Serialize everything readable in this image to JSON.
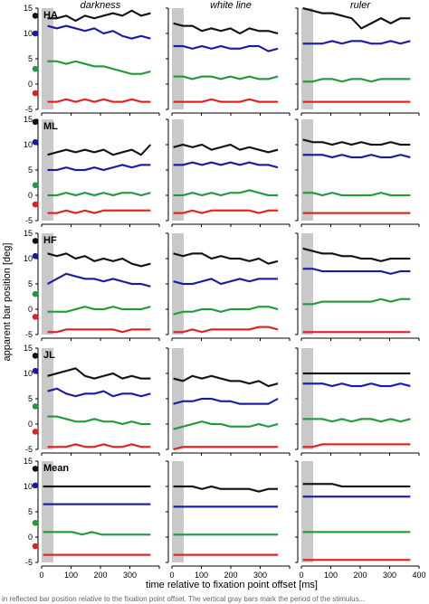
{
  "chart_data": {
    "type": "line",
    "columns": [
      "darkness",
      "white line",
      "ruler"
    ],
    "rows": [
      "HA",
      "ML",
      "HF",
      "JL",
      "Mean"
    ],
    "xlabel": "time relative to fixation point offset [ms]",
    "ylabel": "apparent bar position [deg]",
    "xlim": [
      0,
      400
    ],
    "ylim": [
      -5,
      15
    ],
    "xticks": [
      0,
      100,
      200,
      300,
      400
    ],
    "yticks": [
      15,
      10,
      5,
      0,
      -5
    ],
    "xtick_labels_by_column": [
      [
        "0",
        "100",
        "200",
        "300"
      ],
      [
        "0",
        "100",
        "200",
        "300"
      ],
      [
        "0",
        "100",
        "200",
        "300",
        "400"
      ]
    ],
    "ytick_labels": [
      "15",
      "10",
      "5",
      "0",
      "-5"
    ],
    "shaded_interval": [
      0,
      40
    ],
    "series_colors": [
      "#111111",
      "#1a1aa0",
      "#1e9a3a",
      "#e02020"
    ],
    "stimulus_positions": [
      [
        13.5,
        10,
        3,
        -1.8
      ],
      [
        14.5,
        10.5,
        2,
        -1.8
      ],
      [
        13.5,
        10.5,
        3,
        -1.5
      ],
      [
        13.5,
        10.5,
        3.5,
        -1.5
      ],
      [
        13.5,
        10.2,
        2.8,
        -1.8
      ]
    ],
    "panels": [
      [
        {
          "x0": 20,
          "x1": 370,
          "series": [
            [
              13,
              13,
              13.5,
              12.5,
              13.5,
              13,
              13.5,
              14,
              13.5,
              14.5,
              13.5,
              14
            ],
            [
              11.5,
              11,
              11.5,
              11,
              10.5,
              11,
              10,
              10.5,
              9.5,
              9,
              9.5,
              9
            ],
            [
              4.5,
              4.5,
              4,
              4.5,
              4,
              3.5,
              3.5,
              3,
              2.5,
              2,
              2,
              2.5
            ],
            [
              -3.5,
              -3.5,
              -3,
              -3.5,
              -3,
              -3.5,
              -3,
              -3.5,
              -3.5,
              -3,
              -3.5,
              -3.5
            ]
          ]
        },
        {
          "x0": 5,
          "x1": 360,
          "series": [
            [
              12,
              11.5,
              11.5,
              10.5,
              11,
              10.5,
              11,
              10,
              11,
              10.5,
              10.5,
              10
            ],
            [
              7.5,
              7.5,
              7,
              7.5,
              7,
              7.5,
              7,
              7,
              7.5,
              7.5,
              6.5,
              7
            ],
            [
              1.5,
              1.5,
              1,
              1.5,
              1.5,
              1,
              1.5,
              1,
              1.5,
              1,
              1,
              1.5
            ],
            [
              -3.5,
              -3.5,
              -3.5,
              -3.5,
              -3,
              -3.5,
              -3.5,
              -3.5,
              -3,
              -3.5,
              -3.5,
              -3.5
            ]
          ]
        },
        {
          "x0": 5,
          "x1": 370,
          "series": [
            [
              15,
              14.5,
              14,
              14,
              13.5,
              13,
              11,
              12,
              13,
              12,
              13,
              13
            ],
            [
              8,
              8,
              8,
              8.5,
              8,
              8.5,
              8.5,
              8,
              8,
              8.5,
              8,
              8.5
            ],
            [
              0.5,
              0.5,
              1,
              1,
              0.5,
              1,
              1,
              0.5,
              1,
              1,
              1,
              1
            ],
            [
              -3.5,
              -3.5,
              -3.5,
              -3.5,
              -3.5,
              -3.5,
              -3.5,
              -3.5,
              -3.5,
              -3.5,
              -3.5,
              -3.5
            ]
          ]
        }
      ],
      [
        {
          "x0": 20,
          "x1": 370,
          "series": [
            [
              8,
              8.5,
              9,
              8.5,
              9,
              8.5,
              9,
              8,
              8.5,
              9,
              8,
              10
            ],
            [
              5,
              5,
              5.5,
              5,
              5,
              5.5,
              5,
              5.5,
              6,
              5.5,
              6,
              6
            ],
            [
              0,
              0,
              0.5,
              0,
              0.5,
              0,
              0.5,
              0,
              0.5,
              0.5,
              0,
              0.5
            ],
            [
              -3.5,
              -3.5,
              -3,
              -3.5,
              -3,
              -3.5,
              -3,
              -3,
              -3,
              -3,
              -3,
              -3
            ]
          ]
        },
        {
          "x0": 5,
          "x1": 360,
          "series": [
            [
              9.5,
              10,
              9.5,
              10,
              9,
              9.5,
              10,
              9,
              9.5,
              9,
              8.5,
              9
            ],
            [
              6,
              6,
              6.5,
              6,
              6.5,
              6,
              6.5,
              6,
              6.5,
              6,
              6,
              5.5
            ],
            [
              0,
              0,
              0.5,
              0,
              0.5,
              0,
              0.5,
              0.5,
              1,
              0.5,
              0,
              0
            ],
            [
              -3.5,
              -3.5,
              -3,
              -3.5,
              -3,
              -3,
              -3,
              -3,
              -3,
              -3.5,
              -3,
              -3
            ]
          ]
        },
        {
          "x0": 5,
          "x1": 370,
          "series": [
            [
              11,
              10.5,
              10.5,
              10,
              10.5,
              10,
              10.5,
              10,
              10,
              10.5,
              10,
              10
            ],
            [
              8,
              8,
              8,
              7.5,
              8,
              7.5,
              7.5,
              8,
              7.5,
              7.5,
              8,
              7.5
            ],
            [
              0.5,
              0.5,
              0,
              0.5,
              0,
              0,
              0,
              0,
              0.5,
              0,
              0,
              0
            ],
            [
              -3.5,
              -3.5,
              -3.5,
              -3.5,
              -3.5,
              -3.5,
              -3.5,
              -3.5,
              -3.5,
              -3.5,
              -3.5,
              -3.5
            ]
          ]
        }
      ],
      [
        {
          "x0": 20,
          "x1": 370,
          "series": [
            [
              11,
              10.5,
              11,
              10,
              10.5,
              9.5,
              10,
              9.5,
              10,
              9,
              8.5,
              9
            ],
            [
              5,
              6,
              7,
              6.5,
              6,
              6,
              5.5,
              6,
              5.5,
              5,
              5,
              4.5
            ],
            [
              -0.5,
              -0.5,
              -0.5,
              0,
              0.5,
              0,
              0,
              0.5,
              0,
              0,
              0,
              0.5
            ],
            [
              -4.5,
              -4.5,
              -4,
              -4,
              -4,
              -4,
              -4,
              -4,
              -4.5,
              -4,
              -4,
              -4
            ]
          ]
        },
        {
          "x0": 5,
          "x1": 360,
          "series": [
            [
              11,
              10.5,
              11,
              11,
              10,
              10.5,
              10,
              10,
              9.5,
              10,
              9,
              9.5
            ],
            [
              5.5,
              5,
              5,
              5.5,
              6,
              5,
              5.5,
              6,
              5.5,
              6,
              6,
              6
            ],
            [
              -1,
              -0.5,
              -0.5,
              0,
              0,
              -0.5,
              0,
              0,
              0,
              0.5,
              0.5,
              0
            ],
            [
              -4.5,
              -4.5,
              -4,
              -4.5,
              -4,
              -4,
              -4,
              -4,
              -4,
              -3.5,
              -3.5,
              -4
            ]
          ]
        },
        {
          "x0": 5,
          "x1": 370,
          "series": [
            [
              12,
              11.5,
              11,
              11,
              10.5,
              10.5,
              10,
              10,
              9.5,
              10,
              10,
              10
            ],
            [
              8,
              8,
              7.5,
              7.5,
              7.5,
              7.5,
              7.5,
              7.5,
              7.5,
              7,
              7.5,
              7.5
            ],
            [
              1,
              1,
              1.5,
              1.5,
              1.5,
              1.5,
              1.5,
              1.5,
              2,
              1.5,
              2,
              2
            ],
            [
              -4.5,
              -4.5,
              -4.5,
              -4.5,
              -4.5,
              -4.5,
              -4.5,
              -4.5,
              -4.5,
              -4.5,
              -4.5,
              -4.5
            ]
          ]
        }
      ],
      [
        {
          "x0": 20,
          "x1": 370,
          "series": [
            [
              9.5,
              10,
              10.5,
              11,
              9.5,
              9,
              9.5,
              10,
              9,
              9.5,
              9,
              9
            ],
            [
              6.5,
              7,
              6,
              5.5,
              6,
              6,
              6.5,
              5.5,
              6,
              6,
              5.5,
              6
            ],
            [
              1.5,
              1.5,
              1,
              0.5,
              0.5,
              1,
              0.5,
              0.5,
              0,
              0.5,
              0,
              0
            ],
            [
              -4.5,
              -4.5,
              -4.5,
              -4,
              -4.5,
              -4.5,
              -4,
              -4.5,
              -4.5,
              -4,
              -4.5,
              -4.5
            ]
          ]
        },
        {
          "x0": 5,
          "x1": 360,
          "series": [
            [
              9,
              8.5,
              9.5,
              9,
              9.5,
              9,
              8.5,
              8.5,
              8,
              8.5,
              7.5,
              8
            ],
            [
              4,
              4.5,
              4.5,
              5,
              5,
              4.5,
              4.5,
              4,
              4,
              4,
              4,
              5
            ],
            [
              -1,
              -0.5,
              0,
              0.5,
              0,
              0,
              -0.5,
              -0.5,
              -0.5,
              0,
              -0.5,
              0
            ],
            [
              -5,
              -4.5,
              -4.5,
              -4.5,
              -4.5,
              -4.5,
              -4.5,
              -4.5,
              -4.5,
              -4.5,
              -4.5,
              -4.5
            ]
          ]
        },
        {
          "x0": 5,
          "x1": 370,
          "series": [
            [
              10,
              10,
              10,
              10,
              10,
              10,
              10,
              10,
              10,
              10,
              10,
              10
            ],
            [
              8,
              8,
              8,
              7.5,
              8,
              7.5,
              7.5,
              8,
              7.5,
              7.5,
              8,
              7.5
            ],
            [
              1,
              1,
              1,
              0.5,
              1,
              0.5,
              1,
              1,
              0.5,
              1,
              0.5,
              1
            ],
            [
              -4.5,
              -4.5,
              -4,
              -4,
              -4,
              -4,
              -4,
              -4,
              -4,
              -4,
              -4,
              -4
            ]
          ]
        }
      ],
      [
        {
          "x0": 5,
          "x1": 370,
          "series": [
            [
              10,
              10,
              10,
              10,
              10,
              10,
              10,
              10,
              10,
              10,
              10,
              10
            ],
            [
              6.5,
              6.5,
              6.5,
              6.5,
              6.5,
              6.5,
              6.5,
              6.5,
              6.5,
              6.5,
              6.5,
              6.5
            ],
            [
              1,
              1,
              1,
              1,
              0.5,
              1,
              0.5,
              0.5,
              0.5,
              0.5,
              0.5,
              0.5
            ],
            [
              -3.5,
              -3.5,
              -3.5,
              -3.5,
              -3.5,
              -3.5,
              -3.5,
              -3.5,
              -3.5,
              -3.5,
              -3.5,
              -3.5
            ]
          ]
        },
        {
          "x0": 5,
          "x1": 360,
          "series": [
            [
              10,
              10,
              10,
              9.5,
              10,
              9.5,
              9.5,
              9.5,
              9.5,
              9,
              9.5,
              9.5
            ],
            [
              6,
              6,
              6,
              6,
              6,
              6,
              6,
              6,
              6,
              6,
              6,
              6
            ],
            [
              0.5,
              0.5,
              0.5,
              0.5,
              0.5,
              0.5,
              0.5,
              0.5,
              0.5,
              0.5,
              0.5,
              0.5
            ],
            [
              -3.5,
              -3.5,
              -3.5,
              -3.5,
              -3.5,
              -3.5,
              -3.5,
              -3.5,
              -3.5,
              -3.5,
              -3.5,
              -3.5
            ]
          ]
        },
        {
          "x0": 5,
          "x1": 370,
          "series": [
            [
              10.5,
              10.5,
              10.5,
              10.5,
              10,
              10,
              10,
              10,
              10,
              10,
              10,
              10
            ],
            [
              8,
              8,
              8,
              8,
              8,
              8,
              8,
              8,
              8,
              8,
              8,
              8
            ],
            [
              1,
              1,
              1,
              1,
              1,
              1,
              1,
              1,
              1,
              1,
              1,
              1
            ],
            [
              -4.5,
              -4.5,
              -4.5,
              -4.5,
              -4.5,
              -4.5,
              -4.5,
              -4.5,
              -4.5,
              -4.5,
              -4.5,
              -4.5
            ]
          ]
        }
      ]
    ]
  },
  "caption": "in reflected bar position relative to the fixation point offset. The vertical gray bars mark the period of the stimulus..."
}
